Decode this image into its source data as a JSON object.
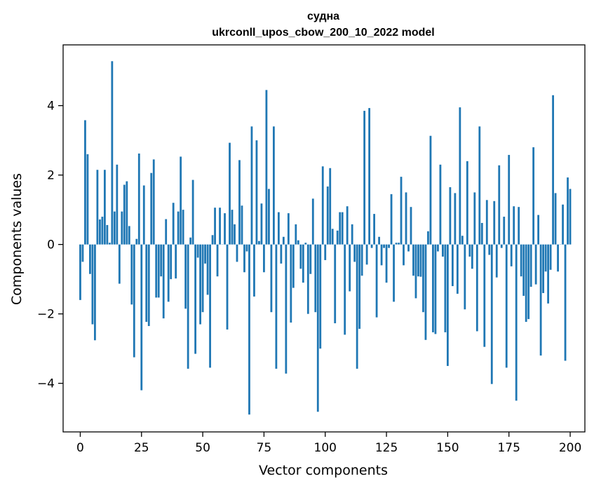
{
  "chart_data": {
    "type": "bar",
    "title": "судна",
    "subtitle": "ukrconll_upos_cbow_200_10_2022 model",
    "xlabel": "Vector components",
    "ylabel": "Components values",
    "xlim": [
      -7,
      206
    ],
    "ylim": [
      -5.4,
      5.75
    ],
    "xticks": [
      0,
      25,
      50,
      75,
      100,
      125,
      150,
      175,
      200
    ],
    "yticks": [
      -4,
      -2,
      0,
      2,
      4
    ],
    "bar_color": "#1f77b4",
    "grid": false,
    "values": [
      -1.6,
      -0.5,
      3.58,
      2.6,
      -0.85,
      -2.3,
      -2.76,
      2.15,
      0.72,
      0.8,
      2.15,
      0.56,
      0.05,
      5.28,
      0.95,
      2.3,
      -1.13,
      0.95,
      1.72,
      1.82,
      0.53,
      -1.73,
      -3.25,
      0.16,
      2.62,
      -4.2,
      1.7,
      -2.23,
      -2.35,
      2.06,
      2.45,
      -1.53,
      -1.53,
      -0.92,
      -2.13,
      0.73,
      -1.65,
      -1.0,
      1.2,
      -0.98,
      0.95,
      2.53,
      1.0,
      -1.85,
      -3.58,
      0.2,
      1.86,
      -3.15,
      -0.38,
      -2.3,
      -1.95,
      -0.55,
      -1.45,
      -3.55,
      0.27,
      1.06,
      -0.92,
      1.06,
      0.0,
      0.9,
      -2.45,
      2.93,
      1.0,
      0.58,
      -0.5,
      2.43,
      1.12,
      -0.8,
      -0.2,
      -4.9,
      3.4,
      -1.5,
      3.0,
      0.1,
      1.18,
      -0.8,
      4.45,
      1.6,
      -1.95,
      3.4,
      -3.58,
      0.93,
      -0.55,
      0.22,
      -3.72,
      0.9,
      -2.25,
      -1.25,
      0.58,
      0.12,
      -0.7,
      -1.1,
      0.05,
      -2.0,
      -0.85,
      1.32,
      -1.95,
      -4.82,
      -3.0,
      2.25,
      -0.45,
      1.67,
      2.2,
      0.45,
      -2.27,
      0.4,
      0.93,
      0.93,
      -2.6,
      1.1,
      -1.35,
      0.58,
      -0.5,
      -3.58,
      -2.43,
      -0.9,
      3.85,
      -0.58,
      3.93,
      -0.1,
      0.88,
      -2.1,
      0.22,
      -0.6,
      -0.1,
      -1.1,
      -0.1,
      1.45,
      -1.65,
      0.05,
      0.05,
      1.95,
      -0.6,
      1.5,
      -0.2,
      1.08,
      -0.9,
      -1.55,
      -0.92,
      -0.93,
      -1.95,
      -2.75,
      0.38,
      3.13,
      -2.53,
      -2.58,
      -0.2,
      2.3,
      -0.35,
      -2.53,
      -3.5,
      1.65,
      -1.2,
      1.48,
      -1.42,
      3.95,
      0.25,
      -1.87,
      2.4,
      -0.35,
      -0.7,
      1.5,
      -2.5,
      3.4,
      0.62,
      -2.95,
      1.28,
      -0.3,
      -4.02,
      1.25,
      -0.95,
      2.28,
      -0.1,
      0.8,
      -3.55,
      2.58,
      -0.63,
      1.1,
      -4.5,
      1.08,
      -0.92,
      -1.48,
      -2.23,
      -2.15,
      -1.22,
      2.8,
      -1.15,
      0.85,
      -3.2,
      -1.4,
      -0.78,
      -1.7,
      -0.73,
      4.3,
      1.48,
      -0.78,
      0.0,
      1.15,
      -3.35,
      1.93,
      1.6
    ]
  }
}
